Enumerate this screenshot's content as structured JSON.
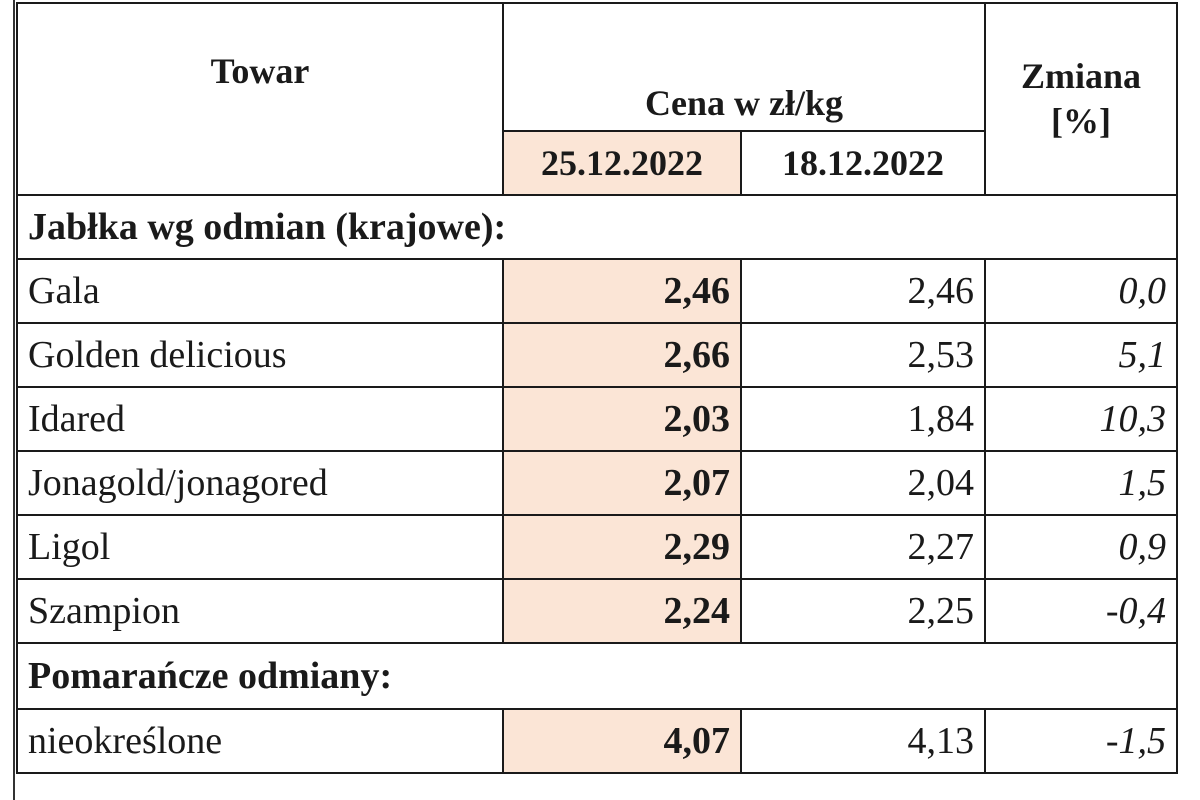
{
  "headers": {
    "towar": "Towar",
    "cena": "Cena w zł/kg",
    "zmiana_line1": "Zmiana",
    "zmiana_line2": "[%]",
    "date_current": "25.12.2022",
    "date_previous": "18.12.2022"
  },
  "sections": [
    {
      "title": "Jabłka wg odmian (krajowe):",
      "rows": [
        {
          "name": "Gala",
          "current": "2,46",
          "previous": "2,46",
          "change": "0,0"
        },
        {
          "name": "Golden delicious",
          "current": "2,66",
          "previous": "2,53",
          "change": "5,1"
        },
        {
          "name": "Idared",
          "current": "2,03",
          "previous": "1,84",
          "change": "10,3"
        },
        {
          "name": "Jonagold/jonagored",
          "current": "2,07",
          "previous": "2,04",
          "change": "1,5"
        },
        {
          "name": "Ligol",
          "current": "2,29",
          "previous": "2,27",
          "change": "0,9"
        },
        {
          "name": "Szampion",
          "current": "2,24",
          "previous": "2,25",
          "change": "-0,4"
        }
      ]
    },
    {
      "title": "Pomarańcze odmiany:",
      "rows": [
        {
          "name": "nieokreślone",
          "current": "4,07",
          "previous": "4,13",
          "change": "-1,5"
        }
      ]
    }
  ],
  "colors": {
    "highlight": "#fbe5d6",
    "border": "#1a1a1a"
  }
}
